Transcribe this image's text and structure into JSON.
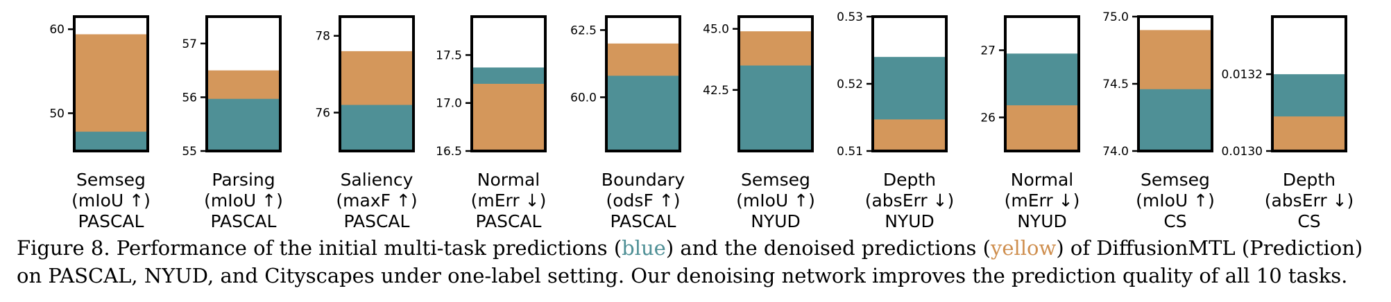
{
  "chart_data": [
    {
      "type": "bar",
      "xlabel": [
        "Semseg",
        "(mIoU ↑)",
        "PASCAL"
      ],
      "ylim": [
        45.5,
        61.5
      ],
      "ticks": [
        50,
        60
      ],
      "tick_labels": [
        "50",
        "60"
      ],
      "tick_side": "left",
      "series": [
        {
          "values": [
            47.8
          ]
        },
        {
          "values": [
            59.4
          ]
        }
      ]
    },
    {
      "type": "bar",
      "xlabel": [
        "Parsing",
        "(mIoU ↑)",
        "PASCAL"
      ],
      "ylim": [
        55.0,
        57.5
      ],
      "ticks": [
        55,
        56,
        57
      ],
      "tick_labels": [
        "55",
        "56",
        "57"
      ],
      "tick_side": "left",
      "series": [
        {
          "values": [
            55.97
          ]
        },
        {
          "values": [
            56.5
          ]
        }
      ]
    },
    {
      "type": "bar",
      "xlabel": [
        "Saliency",
        "(maxF ↑)",
        "PASCAL"
      ],
      "ylim": [
        75.0,
        78.5
      ],
      "ticks": [
        76,
        78
      ],
      "tick_labels": [
        "76",
        "78"
      ],
      "tick_side": "left",
      "series": [
        {
          "values": [
            76.2
          ]
        },
        {
          "values": [
            77.6
          ]
        }
      ]
    },
    {
      "type": "bar",
      "xlabel": [
        "Normal",
        "(mErr ↓)",
        "PASCAL"
      ],
      "ylim": [
        16.5,
        17.9
      ],
      "ticks": [
        16.5,
        17.0,
        17.5
      ],
      "tick_labels": [
        "16.5",
        "17.0",
        "17.5"
      ],
      "tick_side": "left",
      "series": [
        {
          "values": [
            17.37
          ]
        },
        {
          "values": [
            17.2
          ]
        }
      ]
    },
    {
      "type": "bar",
      "xlabel": [
        "Boundary",
        "(odsF ↑)",
        "PASCAL"
      ],
      "ylim": [
        58.0,
        63.0
      ],
      "ticks": [
        60.0,
        62.5
      ],
      "tick_labels": [
        "60.0",
        "62.5"
      ],
      "tick_side": "left",
      "series": [
        {
          "values": [
            60.8
          ]
        },
        {
          "values": [
            62.0
          ]
        }
      ]
    },
    {
      "type": "bar",
      "xlabel": [
        "Semseg",
        "(mIoU ↑)",
        "NYUD"
      ],
      "ylim": [
        40.0,
        45.5
      ],
      "ticks": [
        42.5,
        45.0
      ],
      "tick_labels": [
        "42.5",
        "45.0"
      ],
      "tick_side": "left",
      "series": [
        {
          "values": [
            43.5
          ]
        },
        {
          "values": [
            44.9
          ]
        }
      ]
    },
    {
      "type": "bar",
      "xlabel": [
        "Depth",
        "(absErr ↓)",
        "NYUD"
      ],
      "ylim": [
        0.51,
        0.53
      ],
      "ticks": [
        0.51,
        0.52,
        0.53
      ],
      "tick_labels": [
        "0.51",
        "0.52",
        "0.53"
      ],
      "tick_side": "left",
      "series": [
        {
          "values": [
            0.524
          ]
        },
        {
          "values": [
            0.5147
          ]
        }
      ]
    },
    {
      "type": "bar",
      "xlabel": [
        "Normal",
        "(mErr ↓)",
        "NYUD"
      ],
      "ylim": [
        25.5,
        27.5
      ],
      "ticks": [
        26,
        27
      ],
      "tick_labels": [
        "26",
        "27"
      ],
      "tick_side": "left",
      "series": [
        {
          "values": [
            26.95
          ]
        },
        {
          "values": [
            26.18
          ]
        }
      ]
    },
    {
      "type": "bar",
      "xlabel": [
        "Semseg",
        "(mIoU ↑)",
        "CS"
      ],
      "ylim": [
        74.0,
        75.0
      ],
      "ticks": [
        74.0,
        74.5,
        75.0
      ],
      "tick_labels": [
        "74.0",
        "74.5",
        "75.0"
      ],
      "tick_side": "left",
      "series": [
        {
          "values": [
            74.46
          ]
        },
        {
          "values": [
            74.9
          ]
        }
      ]
    },
    {
      "type": "bar",
      "xlabel": [
        "Depth",
        "(absErr ↓)",
        "CS"
      ],
      "ylim": [
        0.013,
        0.01335
      ],
      "ticks": [
        0.013,
        0.0132
      ],
      "tick_labels": [
        "0.0130",
        "0.0132"
      ],
      "tick_side": "left",
      "series": [
        {
          "values": [
            0.0132
          ]
        },
        {
          "values": [
            0.01309
          ]
        }
      ]
    }
  ],
  "colors": {
    "blue": "#4f9096",
    "yellow": "#d4975b"
  },
  "caption": {
    "prefix": "Figure 8. Performance of the initial multi-task predictions (",
    "blue_word": "blue",
    "mid": ") and the denoised predictions (",
    "yellow_word": "yellow",
    "suffix": ") of DiffusionMTL (Prediction) on PASCAL, NYUD, and Cityscapes under one-label setting. Our denoising network improves the prediction quality of all 10 tasks."
  }
}
